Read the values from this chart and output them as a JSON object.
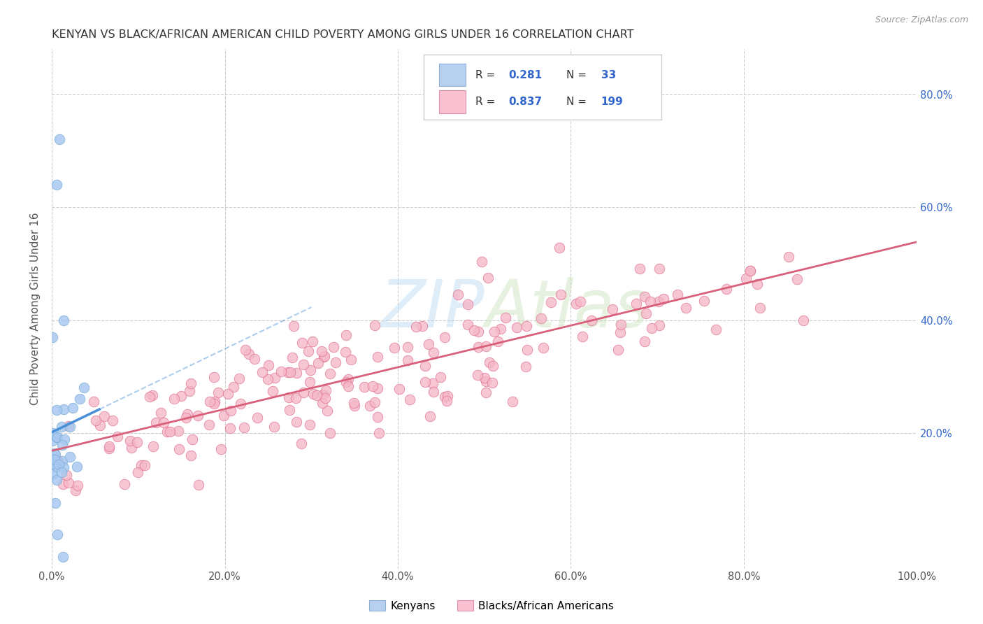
{
  "title": "KENYAN VS BLACK/AFRICAN AMERICAN CHILD POVERTY AMONG GIRLS UNDER 16 CORRELATION CHART",
  "source": "Source: ZipAtlas.com",
  "ylabel": "Child Poverty Among Girls Under 16",
  "watermark": "ZIPAtlas",
  "kenyan_scatter_color": "#a8c8f0",
  "kenyan_scatter_edge": "#7aaed6",
  "kenyan_line_color": "#4a90d9",
  "baa_scatter_color": "#f5b8c8",
  "baa_scatter_edge": "#e07090",
  "baa_line_color": "#d9607a",
  "background_color": "#ffffff",
  "grid_color": "#cccccc",
  "xlim": [
    0.0,
    1.0
  ],
  "ylim": [
    -0.04,
    0.88
  ],
  "xtick_vals": [
    0.0,
    0.2,
    0.4,
    0.6,
    0.8,
    1.0
  ],
  "xtick_labels": [
    "0.0%",
    "20.0%",
    "40.0%",
    "60.0%",
    "80.0%",
    "100.0%"
  ],
  "ytick_vals": [
    0.2,
    0.4,
    0.6,
    0.8
  ],
  "ytick_labels": [
    "20.0%",
    "40.0%",
    "60.0%",
    "80.0%"
  ],
  "right_ytick_color": "#3366cc",
  "title_fontsize": 11.5,
  "axis_label_fontsize": 11,
  "tick_fontsize": 10.5,
  "legend_R1": "0.281",
  "legend_N1": "33",
  "legend_R2": "0.837",
  "legend_N2": "199",
  "legend_color": "#3366cc",
  "bottom_legend_label1": "Kenyans",
  "bottom_legend_label2": "Blacks/African Americans"
}
